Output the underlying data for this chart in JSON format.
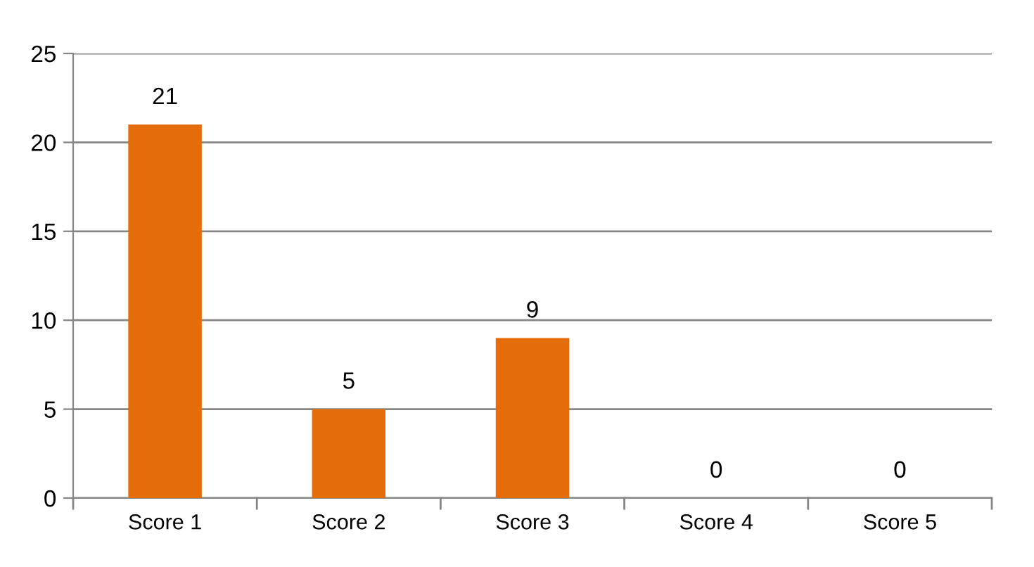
{
  "chart_data": {
    "type": "bar",
    "categories": [
      "Score 1",
      "Score 2",
      "Score 3",
      "Score 4",
      "Score 5"
    ],
    "values": [
      21,
      5,
      9,
      0,
      0
    ],
    "color": "#e46c0a",
    "ylim": [
      0,
      25
    ],
    "yticks": [
      0,
      5,
      10,
      15,
      20,
      25
    ],
    "grid": "y",
    "data_labels": true
  }
}
